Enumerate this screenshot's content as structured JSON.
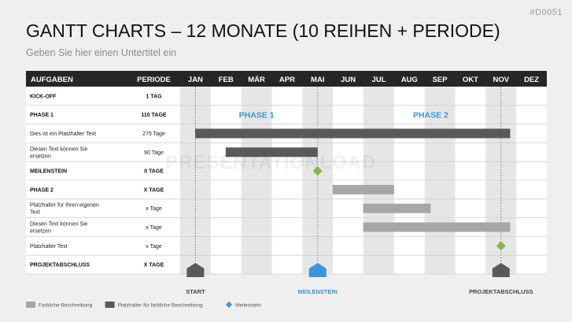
{
  "doc_id": "#D0051",
  "title": "GANTT CHARTS – 12 MONATE (10 REIHEN + PERIODE)",
  "subtitle": "Geben Sie hier einen Untertitel ein",
  "watermark": "PRESENTATIONLOAD",
  "colors": {
    "header": "#262626",
    "bar_dark": "#595959",
    "bar_light": "#a6a6a6",
    "milestone_green": "#8ab54a",
    "milestone_blue": "#3d94d8",
    "accent_blue": "#3d94d8",
    "shade_column": "#e6e6e6",
    "marker_gray": "#595959"
  },
  "chart_data": {
    "type": "gantt",
    "header": {
      "task_col": "AUFGABEN",
      "period_col": "PERIODE"
    },
    "months": [
      "JAN",
      "FEB",
      "MÄR",
      "APR",
      "MAI",
      "JUN",
      "JUL",
      "AUG",
      "SEP",
      "OKT",
      "NOV",
      "DEZ"
    ],
    "rows": [
      {
        "task": "KICK-OFF",
        "period": "1 TAG",
        "bold": true
      },
      {
        "task": "PHASE 1",
        "period": "110 TAGE",
        "bold": true
      },
      {
        "task": "Dies ist ein Platzhalter Text",
        "period": "275 Tage",
        "bold": false,
        "bar": {
          "start": 0,
          "end": 10.8,
          "style": "dark"
        }
      },
      {
        "task": "Diesen Text können Sie ersetzen",
        "period": "90 Tage",
        "bold": false,
        "bar": {
          "start": 1,
          "end": 4.5,
          "style": "dark"
        }
      },
      {
        "task": "MEILENSTEIN",
        "period": "0 TAGE",
        "bold": true,
        "milestone": {
          "at": 4.5,
          "color": "green"
        }
      },
      {
        "task": "PHASE 2",
        "period": "X TAGE",
        "bold": true,
        "bar": {
          "start": 4.5,
          "end": 7,
          "style": "light"
        }
      },
      {
        "task": "Platzhalter für Ihren eigenen Text",
        "period": "x Tage",
        "bold": false,
        "bar": {
          "start": 5.5,
          "end": 8.2,
          "style": "light"
        }
      },
      {
        "task": "Diesen Text können Sie ersetzen",
        "period": "x Tage",
        "bold": false,
        "bar": {
          "start": 5.5,
          "end": 10.8,
          "style": "light"
        }
      },
      {
        "task": "Platzhalter Text",
        "period": "x Tage",
        "bold": false,
        "milestone": {
          "at": 10.5,
          "color": "green"
        }
      },
      {
        "task": "PROJEKTABSCHLUSS",
        "period": "X TAGE",
        "bold": true
      }
    ],
    "phases": [
      {
        "label": "PHASE 1",
        "center": 2.5
      },
      {
        "label": "PHASE 2",
        "center": 8.2
      }
    ],
    "markers": [
      {
        "label": "START",
        "at": 0.5,
        "color": "gray"
      },
      {
        "label": "MEILENSTEIN",
        "at": 4.5,
        "color": "blue"
      },
      {
        "label": "PROJEKTABSCHLUSS",
        "at": 10.5,
        "color": "gray"
      }
    ]
  },
  "legend": [
    {
      "label": "Farbliche Beschreibung",
      "swatch": "light"
    },
    {
      "label": "Platzhalter für farbliche Beschreibung",
      "swatch": "dark"
    },
    {
      "label": "Meilenstein",
      "swatch": "diamond"
    }
  ]
}
